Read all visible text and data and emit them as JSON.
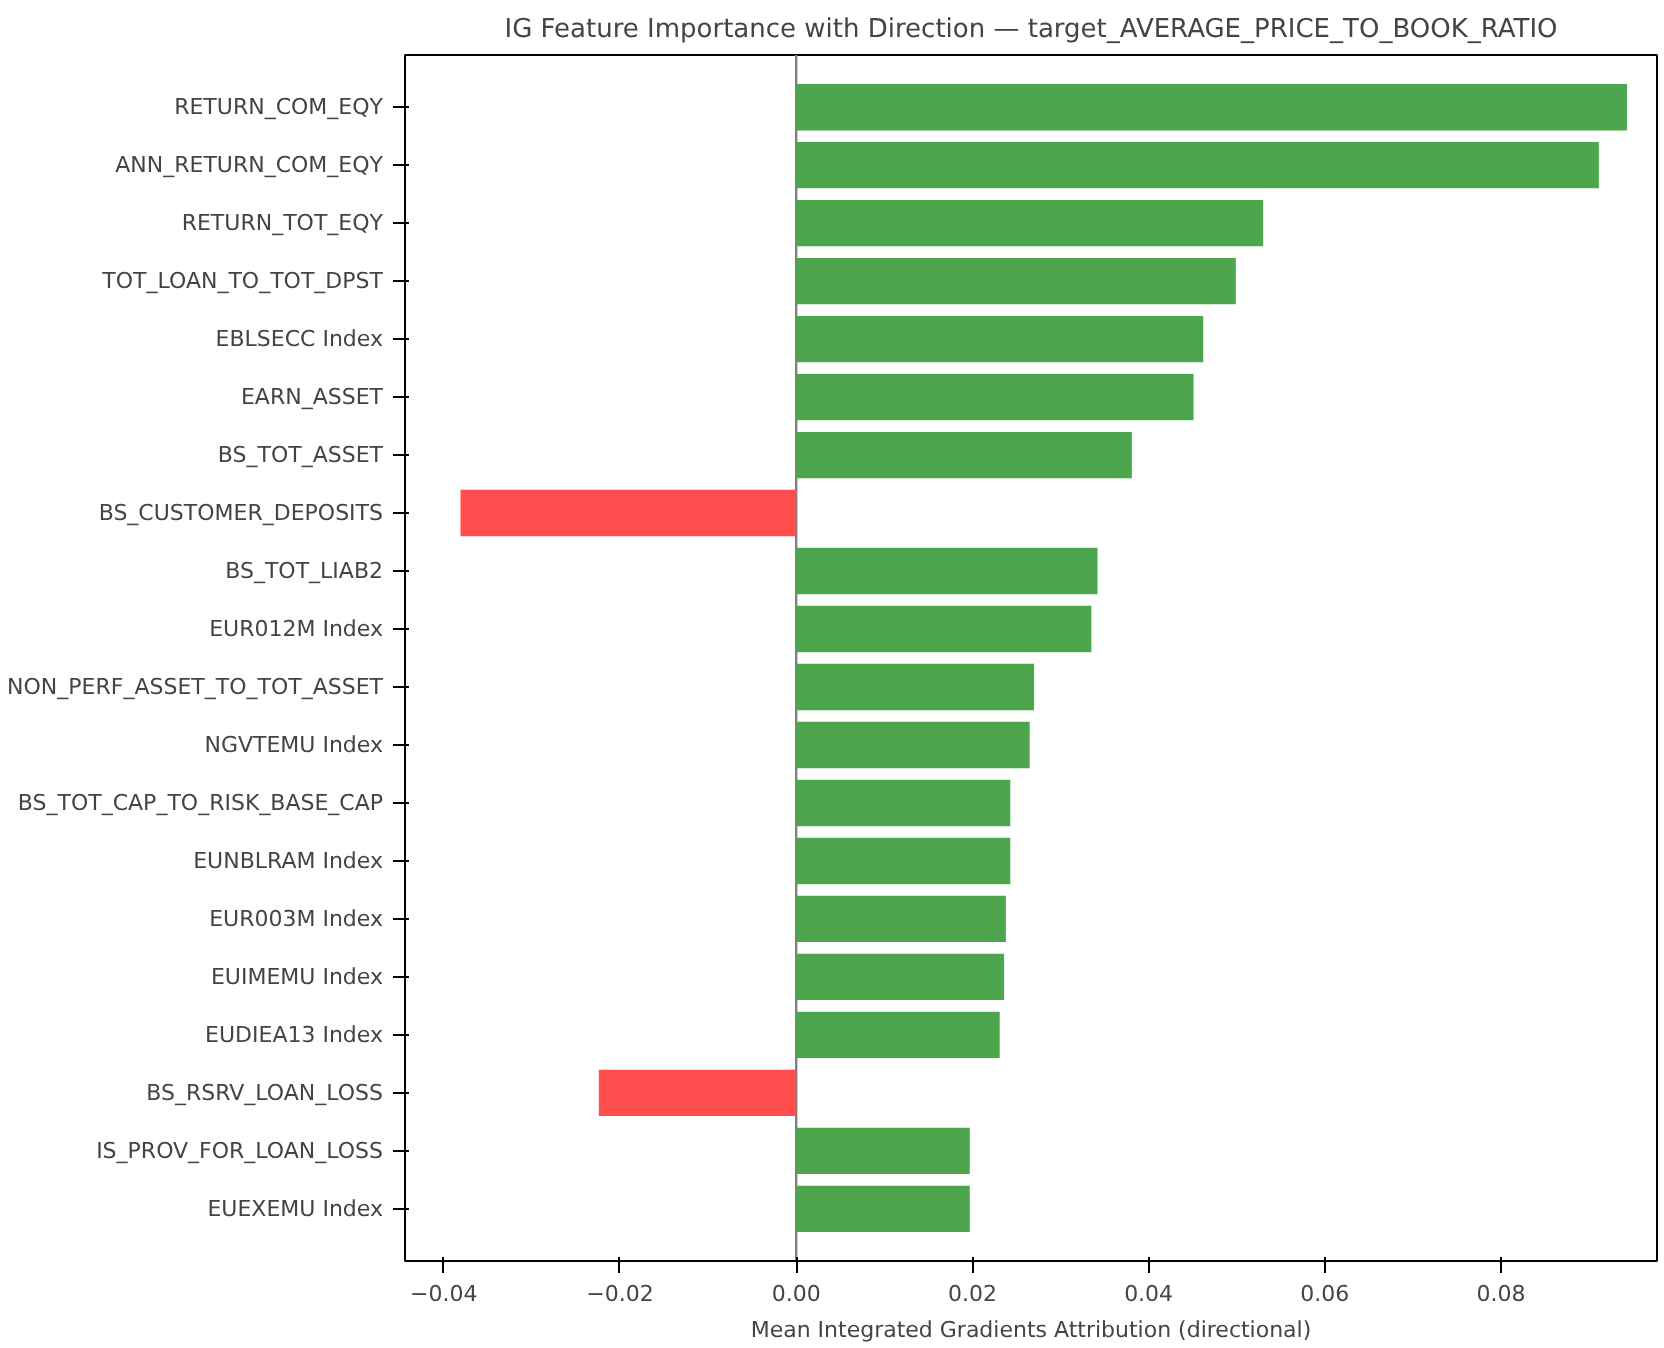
{
  "chart_data": {
    "type": "bar",
    "orientation": "horizontal",
    "title": "IG Feature Importance with Direction — target_AVERAGE_PRICE_TO_BOOK_RATIO",
    "xlabel": "Mean Integrated Gradients Attribution (directional)",
    "categories": [
      "RETURN_COM_EQY",
      "ANN_RETURN_COM_EQY",
      "RETURN_TOT_EQY",
      "TOT_LOAN_TO_TOT_DPST",
      "EBLSECC Index",
      "EARN_ASSET",
      "BS_TOT_ASSET",
      "BS_CUSTOMER_DEPOSITS",
      "BS_TOT_LIAB2",
      "EUR012M Index",
      "NON_PERF_ASSET_TO_TOT_ASSET",
      "NGVTEMU Index",
      "BS_TOT_CAP_TO_RISK_BASE_CAP",
      "EUNBLRAM Index",
      "EUR003M Index",
      "EUIMEMU Index",
      "EUDIEA13 Index",
      "BS_RSRV_LOAN_LOSS",
      "IS_PROV_FOR_LOAN_LOSS",
      "EUEXEMU Index"
    ],
    "values": [
      0.0943,
      0.0911,
      0.053,
      0.0499,
      0.0462,
      0.0451,
      0.0381,
      -0.0381,
      0.0342,
      0.0335,
      0.027,
      0.0265,
      0.0243,
      0.0243,
      0.0238,
      0.0236,
      0.0231,
      -0.0224,
      0.0197,
      0.0197
    ],
    "colors": [
      "#4da64d",
      "#4da64d",
      "#4da64d",
      "#4da64d",
      "#4da64d",
      "#4da64d",
      "#4da64d",
      "#ff4d4d",
      "#4da64d",
      "#4da64d",
      "#4da64d",
      "#4da64d",
      "#4da64d",
      "#4da64d",
      "#4da64d",
      "#4da64d",
      "#4da64d",
      "#ff4d4d",
      "#4da64d",
      "#4da64d"
    ],
    "xlim": [
      -0.0444,
      0.0977
    ],
    "xticks": [
      {
        "value": -0.04,
        "label": "−0.04"
      },
      {
        "value": -0.02,
        "label": "−0.02"
      },
      {
        "value": 0,
        "label": "0.00"
      },
      {
        "value": 0.02,
        "label": "0.02"
      },
      {
        "value": 0.04,
        "label": "0.04"
      },
      {
        "value": 0.06,
        "label": "0.06"
      },
      {
        "value": 0.08,
        "label": "0.08"
      }
    ],
    "ref_lines": [
      {
        "axis": "x",
        "value": 0,
        "color": "#808080"
      }
    ],
    "grid": false
  }
}
